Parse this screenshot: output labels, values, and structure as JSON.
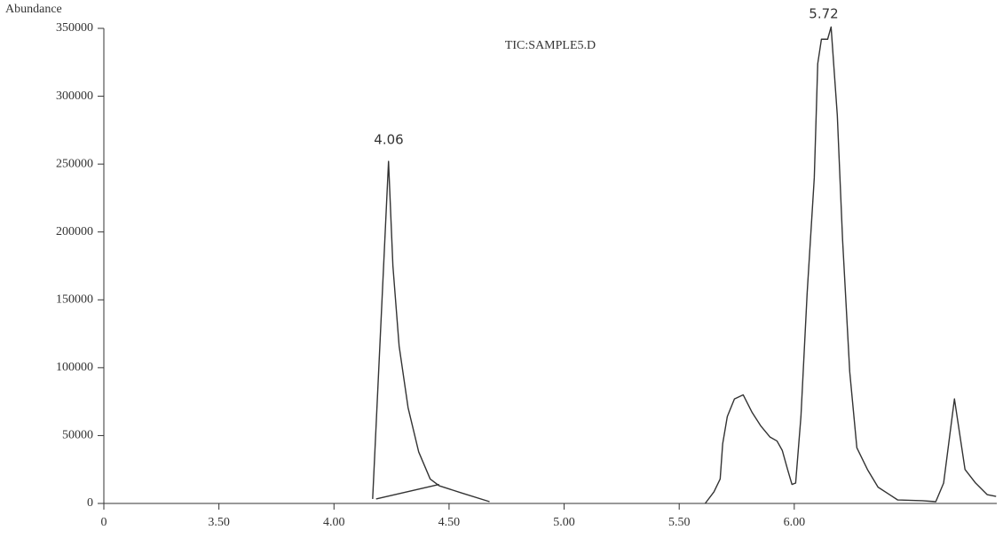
{
  "chart_data": {
    "type": "line",
    "title": "TIC:SAMPLE5.D",
    "y_label": "Abundance",
    "x_axis_origin_label": "0",
    "annotations": [
      "4.06",
      "5.72"
    ],
    "xlim": [
      3.0,
      6.88
    ],
    "ylim": [
      0,
      350000
    ],
    "xticks": [
      {
        "value": 3.5,
        "label": "3.50"
      },
      {
        "value": 4.0,
        "label": "4.00"
      },
      {
        "value": 4.5,
        "label": "4.50"
      },
      {
        "value": 5.0,
        "label": "5.00"
      },
      {
        "value": 5.5,
        "label": "5.50"
      },
      {
        "value": 6.0,
        "label": "6.00"
      }
    ],
    "yticks": [
      0,
      50000,
      100000,
      150000,
      200000,
      250000,
      300000,
      350000
    ],
    "grid": false,
    "series": [
      {
        "color": "#333333",
        "x": [
          4.168,
          4.237,
          4.256,
          4.283,
          4.322,
          4.368,
          4.418,
          4.457,
          4.553,
          4.676
        ],
        "values": [
          3300,
          252000,
          175000,
          116000,
          70500,
          38000,
          18000,
          13000,
          7800,
          1300
        ]
      },
      {
        "color": "#333333",
        "x": [
          4.183,
          4.457
        ],
        "values": [
          3300,
          14000
        ]
      },
      {
        "color": "#333333",
        "x": [
          5.613,
          5.651,
          5.678,
          5.689,
          5.709,
          5.74,
          5.778,
          5.817,
          5.855,
          5.894,
          5.925,
          5.948,
          5.971,
          5.99,
          6.006,
          6.029,
          6.056,
          6.087,
          6.102,
          6.118,
          6.145,
          6.16,
          6.187,
          6.21,
          6.241,
          6.272,
          6.318,
          6.364,
          6.414,
          6.449,
          6.557,
          6.615,
          6.649,
          6.696,
          6.742,
          6.788,
          6.838,
          6.877
        ],
        "values": [
          0,
          8500,
          18000,
          44000,
          64000,
          77000,
          80000,
          67000,
          57000,
          49000,
          46000,
          39000,
          25000,
          14000,
          15000,
          64000,
          155000,
          240000,
          324000,
          342000,
          342000,
          351000,
          286000,
          194000,
          97000,
          41000,
          25000,
          12000,
          6500,
          2600,
          2000,
          1300,
          15000,
          77000,
          25000,
          15000,
          6500,
          5200
        ]
      }
    ]
  }
}
